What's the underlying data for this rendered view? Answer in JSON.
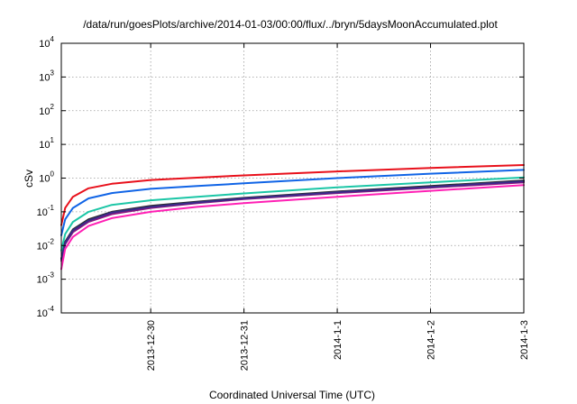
{
  "chart_data": {
    "type": "line",
    "title": "/data/run/goesPlots/archive/2014-01-03/00:00/flux/../bryn/5daysMoonAccumulated.plot",
    "xlabel": "Coordinated Universal Time (UTC)",
    "ylabel": "cSv",
    "yscale": "log",
    "ylim": [
      0.0001,
      10000
    ],
    "xlim": [
      "2013-12-29T01:00",
      "2014-01-03T00:00"
    ],
    "grid": true,
    "legend": "none",
    "y_ticks": [
      {
        "base": "10",
        "exp": "-4",
        "value": 0.0001
      },
      {
        "base": "10",
        "exp": "-3",
        "value": 0.001
      },
      {
        "base": "10",
        "exp": "-2",
        "value": 0.01
      },
      {
        "base": "10",
        "exp": "-1",
        "value": 0.1
      },
      {
        "base": "10",
        "exp": "0",
        "value": 1
      },
      {
        "base": "10",
        "exp": "1",
        "value": 10
      },
      {
        "base": "10",
        "exp": "2",
        "value": 100
      },
      {
        "base": "10",
        "exp": "3",
        "value": 1000
      },
      {
        "base": "10",
        "exp": "4",
        "value": 10000
      }
    ],
    "x_ticks": [
      {
        "label": "2013-12-30",
        "value": "2013-12-30T00:00"
      },
      {
        "label": "2013-12-31",
        "value": "2013-12-31T00:00"
      },
      {
        "label": "2014-1-1",
        "value": "2014-01-01T00:00"
      },
      {
        "label": "2014-1-2",
        "value": "2014-01-02T00:00"
      },
      {
        "label": "2014-1-3",
        "value": "2014-01-03T00:00"
      }
    ],
    "x": [
      "2013-12-29T01:00",
      "2013-12-29T02:00",
      "2013-12-29T04:00",
      "2013-12-29T08:00",
      "2013-12-29T14:00",
      "2013-12-30T00:00",
      "2013-12-30T12:00",
      "2013-12-31T00:00",
      "2014-01-01T00:00",
      "2014-01-02T00:00",
      "2014-01-03T00:00"
    ],
    "series": [
      {
        "color": "#e8101b",
        "values": [
          0.04,
          0.13,
          0.28,
          0.5,
          0.68,
          0.88,
          1.03,
          1.2,
          1.58,
          2.0,
          2.45
        ]
      },
      {
        "color": "#1064e6",
        "values": [
          0.02,
          0.06,
          0.13,
          0.25,
          0.36,
          0.48,
          0.58,
          0.7,
          1.0,
          1.35,
          1.75
        ]
      },
      {
        "color": "#1bc6a6",
        "values": [
          0.007,
          0.022,
          0.05,
          0.1,
          0.16,
          0.22,
          0.28,
          0.35,
          0.53,
          0.75,
          1.05
        ]
      },
      {
        "color": "#2b2b2b",
        "values": [
          0.004,
          0.013,
          0.03,
          0.06,
          0.1,
          0.15,
          0.2,
          0.26,
          0.4,
          0.58,
          0.85
        ]
      },
      {
        "color": "#8a1780",
        "values": [
          0.0035,
          0.011,
          0.025,
          0.05,
          0.085,
          0.13,
          0.18,
          0.24,
          0.36,
          0.52,
          0.75
        ]
      },
      {
        "color": "#3a2a8a",
        "values": [
          0.004,
          0.012,
          0.028,
          0.055,
          0.095,
          0.14,
          0.19,
          0.25,
          0.38,
          0.55,
          0.8
        ]
      },
      {
        "color": "#ff1fb4",
        "values": [
          0.002,
          0.008,
          0.018,
          0.038,
          0.065,
          0.1,
          0.14,
          0.18,
          0.28,
          0.42,
          0.62
        ]
      }
    ]
  }
}
